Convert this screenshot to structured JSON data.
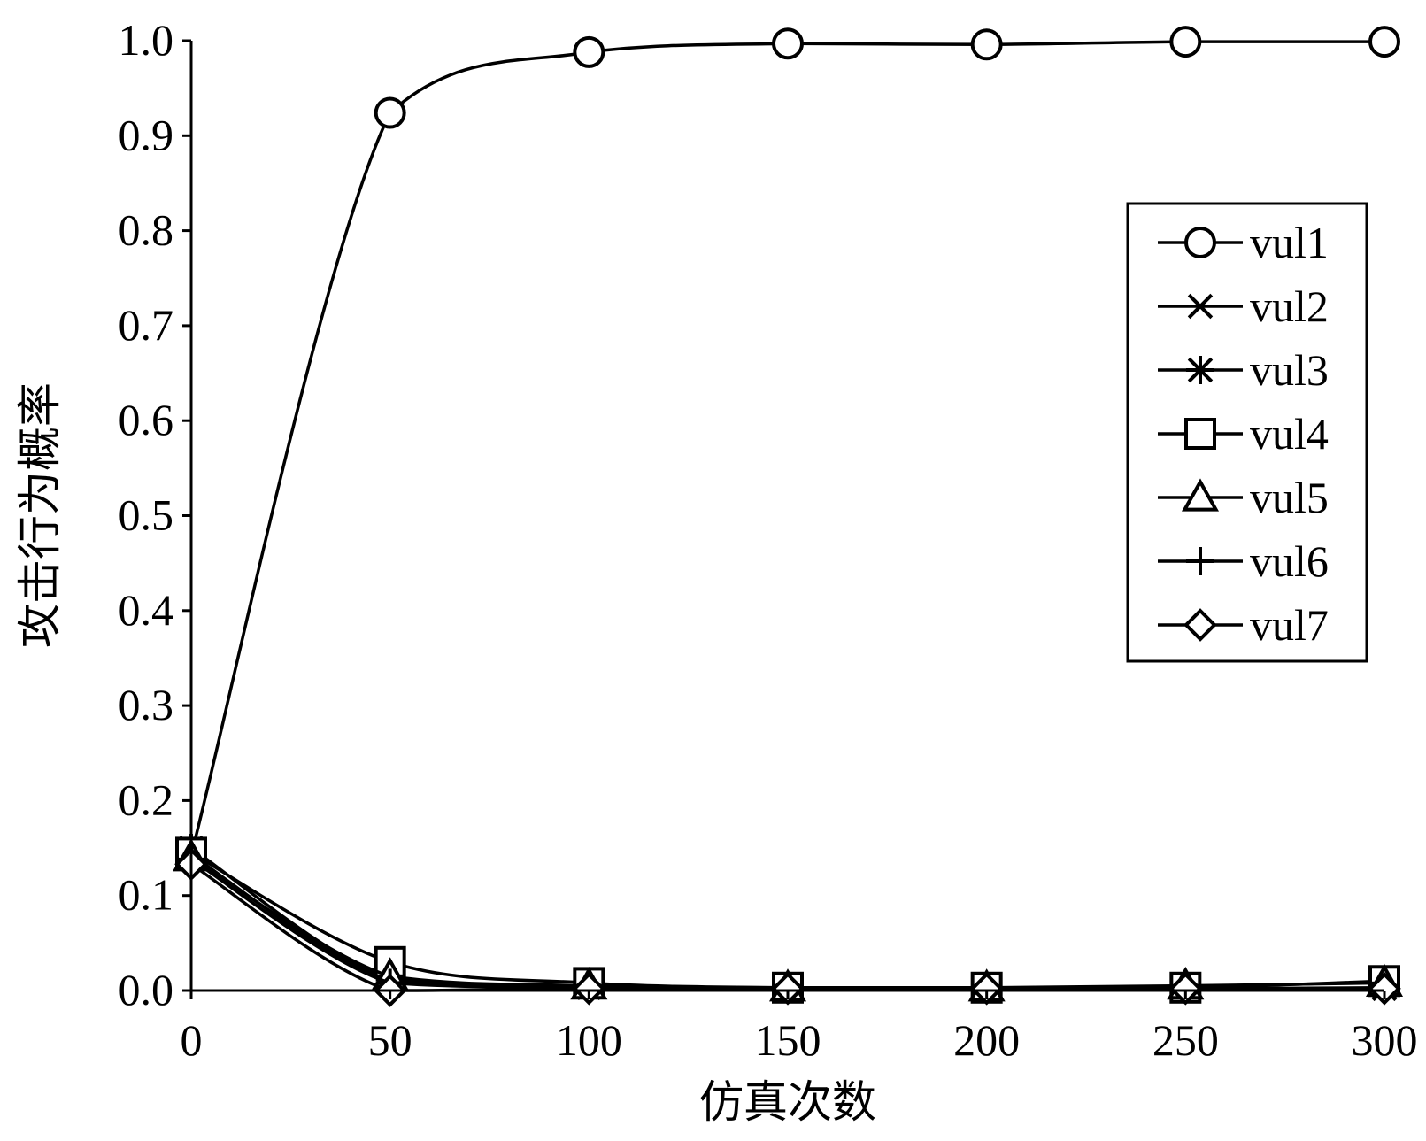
{
  "chart_data": {
    "type": "line",
    "title": "",
    "xlabel": "仿真次数",
    "ylabel": "攻击行为概率",
    "xlim": [
      0,
      300
    ],
    "ylim": [
      0,
      1.0
    ],
    "xticks": [
      "0",
      "50",
      "100",
      "150",
      "200",
      "250",
      "300"
    ],
    "yticks": [
      "0.0",
      "0.1",
      "0.2",
      "0.3",
      "0.4",
      "0.5",
      "0.6",
      "0.7",
      "0.8",
      "0.9",
      "1.0"
    ],
    "grid": false,
    "legend_position": "right",
    "x": [
      0,
      50,
      100,
      150,
      200,
      250,
      300
    ],
    "series": [
      {
        "name": "vul1",
        "marker": "circle",
        "values": [
          0.143,
          0.924,
          0.988,
          0.997,
          0.996,
          0.999,
          0.999
        ]
      },
      {
        "name": "vul2",
        "marker": "x",
        "values": [
          0.143,
          0.01,
          0.003,
          0.002,
          0.002,
          0.002,
          0.002
        ]
      },
      {
        "name": "vul3",
        "marker": "asterisk",
        "values": [
          0.15,
          0.012,
          0.004,
          0.002,
          0.002,
          0.002,
          0.003
        ]
      },
      {
        "name": "vul4",
        "marker": "square",
        "values": [
          0.145,
          0.03,
          0.008,
          0.003,
          0.003,
          0.003,
          0.01
        ]
      },
      {
        "name": "vul5",
        "marker": "triangle",
        "values": [
          0.14,
          0.015,
          0.005,
          0.003,
          0.003,
          0.005,
          0.008
        ]
      },
      {
        "name": "vul6",
        "marker": "plus",
        "values": [
          0.138,
          0.008,
          0.003,
          0.002,
          0.002,
          0.002,
          0.002
        ]
      },
      {
        "name": "vul7",
        "marker": "diamond",
        "values": [
          0.133,
          0.0,
          0.002,
          0.002,
          0.002,
          0.002,
          0.002
        ]
      }
    ]
  }
}
